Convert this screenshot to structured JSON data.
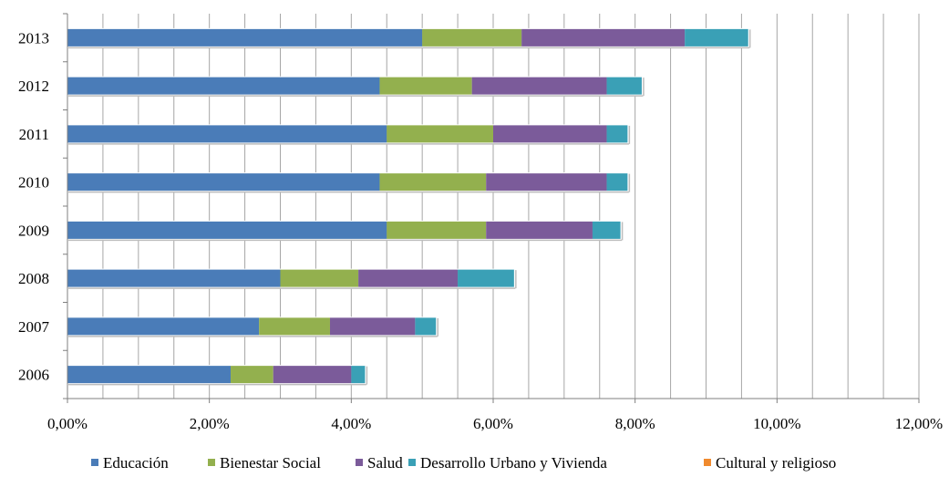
{
  "chart_data": {
    "type": "bar",
    "orientation": "horizontal",
    "stacked": true,
    "categories": [
      "2013",
      "2012",
      "2011",
      "2010",
      "2009",
      "2008",
      "2007",
      "2006"
    ],
    "series": [
      {
        "name": "Educación",
        "color": "#4a7cb8",
        "values": [
          5.0,
          4.4,
          4.5,
          4.4,
          4.5,
          3.0,
          2.7,
          2.3
        ]
      },
      {
        "name": "Bienestar Social",
        "color": "#93b04e",
        "values": [
          1.4,
          1.3,
          1.5,
          1.5,
          1.4,
          1.1,
          1.0,
          0.6
        ]
      },
      {
        "name": "Salud",
        "color": "#7b5b9a",
        "values": [
          2.3,
          1.9,
          1.6,
          1.7,
          1.5,
          1.4,
          1.2,
          1.1
        ]
      },
      {
        "name": "Desarrollo Urbano y Vivienda",
        "color": "#3aa0b6",
        "values": [
          0.9,
          0.5,
          0.3,
          0.3,
          0.4,
          0.8,
          0.3,
          0.2
        ]
      },
      {
        "name": "Cultural y religioso",
        "color": "#f08a2e",
        "values": [
          0,
          0,
          0,
          0,
          0,
          0,
          0,
          0
        ]
      }
    ],
    "xlim": [
      0,
      12
    ],
    "xticks": [
      0,
      2,
      4,
      6,
      8,
      10,
      12
    ],
    "xtick_labels": [
      "0,00%",
      "2,00%",
      "4,00%",
      "6,00%",
      "8,00%",
      "10,00%",
      "12,00%"
    ],
    "xlabel": "",
    "ylabel": "",
    "title": "",
    "grid": "vertical",
    "legend_position": "bottom"
  }
}
